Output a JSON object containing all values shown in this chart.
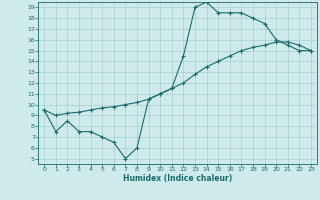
{
  "xlabel": "Humidex (Indice chaleur)",
  "background_color": "#ceeaea",
  "line_color": "#1a6b6b",
  "grid_color": "#aacece",
  "xlim": [
    -0.5,
    23.5
  ],
  "ylim": [
    4.5,
    19.5
  ],
  "xticks": [
    0,
    1,
    2,
    3,
    4,
    5,
    6,
    7,
    8,
    9,
    10,
    11,
    12,
    13,
    14,
    15,
    16,
    17,
    18,
    19,
    20,
    21,
    22,
    23
  ],
  "yticks": [
    5,
    6,
    7,
    8,
    9,
    10,
    11,
    12,
    13,
    14,
    15,
    16,
    17,
    18,
    19
  ],
  "line1_x": [
    0,
    1,
    2,
    3,
    4,
    5,
    6,
    7,
    8,
    9,
    10,
    11,
    12,
    13,
    14,
    15,
    16,
    17,
    18,
    19,
    20,
    21,
    22,
    23
  ],
  "line1_y": [
    9.5,
    7.5,
    8.5,
    7.5,
    7.5,
    7.0,
    6.5,
    5.0,
    6.0,
    10.5,
    11.0,
    11.5,
    14.5,
    19.0,
    19.5,
    18.5,
    18.5,
    18.5,
    18.0,
    17.5,
    16.0,
    15.5,
    15.0,
    15.0
  ],
  "line2_x": [
    0,
    1,
    2,
    3,
    4,
    5,
    6,
    7,
    8,
    9,
    10,
    11,
    12,
    13,
    14,
    15,
    16,
    17,
    18,
    19,
    20,
    21,
    22,
    23
  ],
  "line2_y": [
    9.5,
    9.0,
    9.2,
    9.3,
    9.5,
    9.7,
    9.8,
    10.0,
    10.2,
    10.5,
    11.0,
    11.5,
    12.0,
    12.8,
    13.5,
    14.0,
    14.5,
    15.0,
    15.3,
    15.5,
    15.8,
    15.8,
    15.5,
    15.0
  ],
  "marker": "+"
}
